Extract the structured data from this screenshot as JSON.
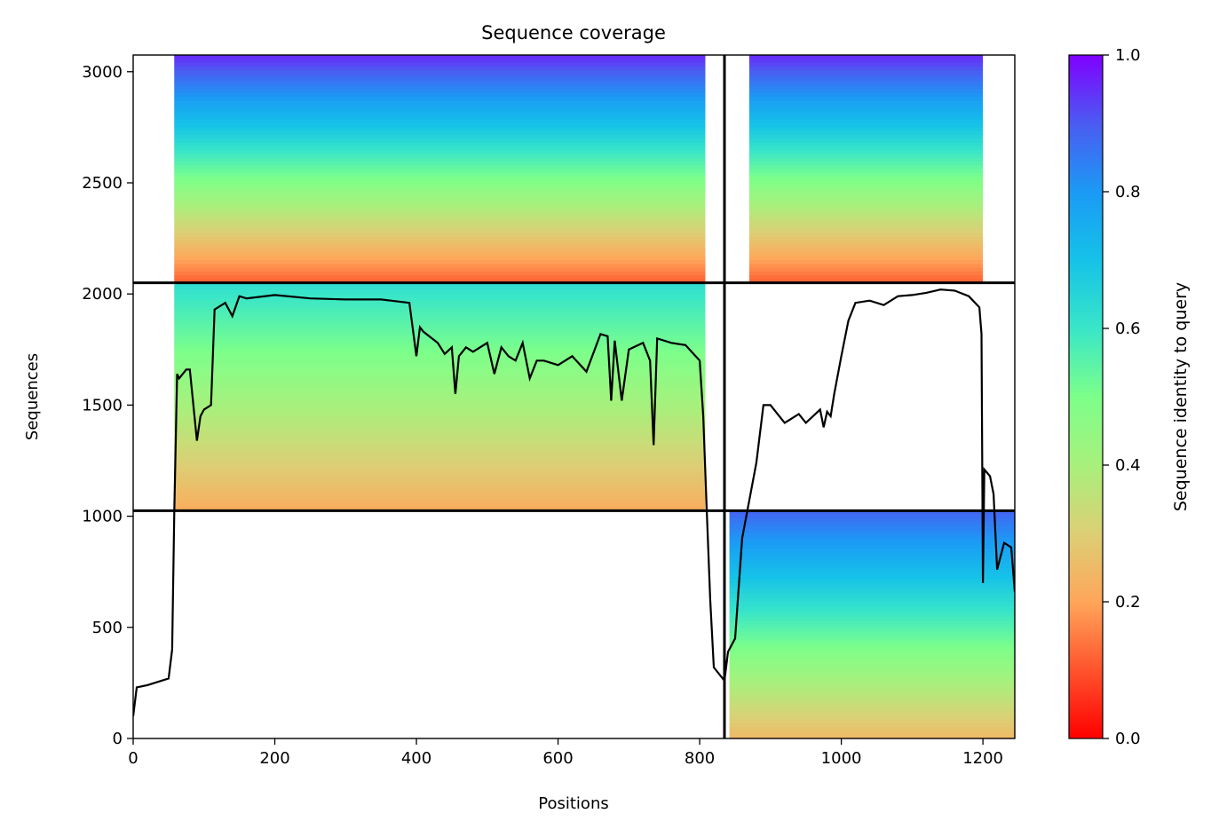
{
  "chart_data": {
    "type": "heatmap",
    "title": "Sequence coverage",
    "xlabel": "Positions",
    "ylabel": "Sequences",
    "xlim": [
      0,
      1245
    ],
    "ylim": [
      0,
      3075
    ],
    "xticks": [
      0,
      200,
      400,
      600,
      800,
      1000,
      1200
    ],
    "yticks": [
      0,
      500,
      1000,
      1500,
      2000,
      2500,
      3000
    ],
    "chain_boundary_x": 835,
    "block_boundaries_y": [
      1025,
      2050
    ],
    "blocks": [
      {
        "x": [
          0,
          835
        ],
        "y": [
          2050,
          3075
        ],
        "start_x": 58,
        "end_x": 808,
        "identity_top": 0.95,
        "identity_bottom": 0.12
      },
      {
        "x": [
          835,
          1245
        ],
        "y": [
          2050,
          3075
        ],
        "start_x": 870,
        "end_x": 1200,
        "identity_top": 0.95,
        "identity_bottom": 0.12
      },
      {
        "x": [
          0,
          835
        ],
        "y": [
          1025,
          2050
        ],
        "start_x": 58,
        "end_x": 808,
        "identity_top": 0.62,
        "identity_bottom": 0.22
      },
      {
        "x": [
          835,
          1245
        ],
        "y": [
          0,
          1025
        ],
        "start_x": 842,
        "end_x": 1245,
        "identity_top": 0.88,
        "identity_bottom": 0.25
      }
    ],
    "coverage": {
      "x": [
        0,
        5,
        20,
        40,
        50,
        55,
        58,
        62,
        65,
        70,
        75,
        80,
        90,
        95,
        100,
        110,
        115,
        130,
        140,
        150,
        160,
        200,
        250,
        300,
        350,
        390,
        400,
        405,
        410,
        430,
        440,
        450,
        455,
        460,
        470,
        480,
        500,
        510,
        520,
        530,
        540,
        550,
        560,
        570,
        580,
        600,
        620,
        640,
        660,
        670,
        675,
        680,
        690,
        700,
        720,
        730,
        735,
        740,
        760,
        780,
        800,
        805,
        810,
        815,
        820,
        830,
        835,
        840,
        850,
        860,
        880,
        890,
        900,
        910,
        920,
        930,
        940,
        950,
        970,
        975,
        980,
        985,
        990,
        1000,
        1010,
        1020,
        1040,
        1060,
        1080,
        1100,
        1120,
        1140,
        1160,
        1180,
        1195,
        1198,
        1200,
        1202,
        1210,
        1215,
        1220,
        1230,
        1240,
        1245
      ],
      "y": [
        100,
        230,
        240,
        260,
        270,
        400,
        1020,
        1640,
        1620,
        1640,
        1660,
        1660,
        1340,
        1450,
        1480,
        1500,
        1930,
        1960,
        1900,
        1990,
        1980,
        1995,
        1980,
        1975,
        1975,
        1960,
        1720,
        1850,
        1830,
        1780,
        1730,
        1760,
        1550,
        1720,
        1760,
        1740,
        1780,
        1640,
        1760,
        1720,
        1700,
        1780,
        1620,
        1700,
        1700,
        1680,
        1720,
        1650,
        1820,
        1810,
        1520,
        1790,
        1520,
        1750,
        1780,
        1700,
        1320,
        1800,
        1780,
        1770,
        1700,
        1450,
        1030,
        620,
        320,
        280,
        260,
        390,
        450,
        900,
        1240,
        1500,
        1500,
        1460,
        1420,
        1440,
        1460,
        1420,
        1480,
        1400,
        1470,
        1450,
        1550,
        1720,
        1880,
        1960,
        1970,
        1950,
        1990,
        1995,
        2005,
        2020,
        2015,
        1990,
        1940,
        1820,
        700,
        1210,
        1180,
        1100,
        760,
        880,
        860,
        660
      ]
    }
  },
  "colorbar": {
    "label": "Sequence identity to query",
    "ticks": [
      "0.0",
      "0.2",
      "0.4",
      "0.6",
      "0.8",
      "1.0"
    ],
    "range": [
      0,
      1
    ]
  }
}
